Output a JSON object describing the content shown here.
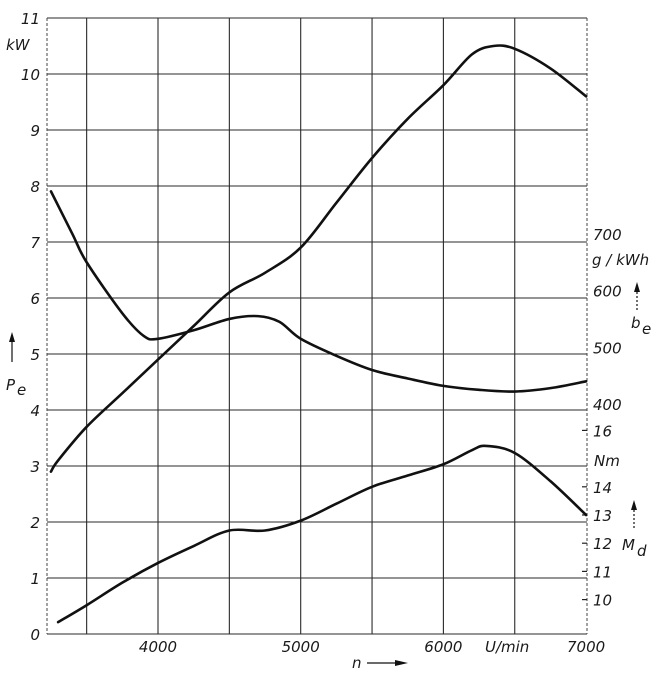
{
  "chart_data": {
    "type": "line",
    "title": "",
    "xlabel": "n",
    "xunit": "U/min",
    "xlim": [
      3200,
      7000
    ],
    "x_ticks": [
      4000,
      5000,
      6000,
      7000
    ],
    "x_gridlines": [
      3500,
      4000,
      4500,
      5000,
      5500,
      6000,
      6500
    ],
    "axes": {
      "left": {
        "label": "P_e",
        "unit": "kW",
        "range": [
          0,
          11
        ],
        "ticks": [
          0,
          1,
          2,
          3,
          4,
          5,
          6,
          7,
          8,
          9,
          10,
          11
        ]
      },
      "right_upper": {
        "label": "b_e",
        "unit": "g/kWh",
        "ticks": [
          400,
          500,
          600,
          700
        ]
      },
      "right_lower": {
        "label": "M_d",
        "unit": "Nm",
        "ticks": [
          10,
          11,
          12,
          13,
          14,
          16
        ]
      }
    },
    "grid": true,
    "series": [
      {
        "name": "P_e (kW)",
        "axis": "left",
        "x": [
          3250,
          3300,
          3500,
          3750,
          4000,
          4250,
          4500,
          4750,
          5000,
          5250,
          5500,
          5750,
          6000,
          6200,
          6350,
          6500,
          6750,
          7000
        ],
        "values": [
          2.9,
          3.1,
          3.7,
          4.3,
          4.9,
          5.5,
          6.1,
          6.45,
          6.9,
          7.7,
          8.5,
          9.2,
          9.8,
          10.35,
          10.5,
          10.45,
          10.1,
          9.6
        ]
      },
      {
        "name": "b_e (g/kWh)",
        "axis": "right_upper",
        "x": [
          3250,
          3400,
          3500,
          3750,
          3900,
          4000,
          4250,
          4500,
          4700,
          4850,
          5000,
          5250,
          5500,
          5750,
          6000,
          6250,
          6500,
          6750,
          7000
        ],
        "values": [
          775,
          700,
          650,
          560,
          520,
          515,
          530,
          550,
          555,
          545,
          515,
          485,
          460,
          445,
          432,
          425,
          422,
          428,
          440
        ]
      },
      {
        "name": "M_d (Nm)",
        "axis": "right_lower",
        "x": [
          3300,
          3500,
          3750,
          4000,
          4250,
          4500,
          4750,
          5000,
          5250,
          5500,
          5750,
          6000,
          6200,
          6300,
          6500,
          6750,
          7000
        ],
        "values": [
          9.2,
          9.8,
          10.6,
          11.3,
          11.9,
          12.45,
          12.45,
          12.8,
          13.4,
          14.0,
          14.4,
          14.8,
          15.3,
          15.45,
          15.2,
          14.2,
          13.0
        ]
      }
    ]
  },
  "labels": {
    "left_unit": "kW",
    "left_axis": "P",
    "left_axis_sub": "e",
    "right_upper_unit": "g / kWh",
    "right_upper_axis": "b",
    "right_upper_axis_sub": "e",
    "right_lower_unit": "Nm",
    "right_lower_axis": "M",
    "right_lower_axis_sub": "d",
    "x_axis": "n",
    "x_unit": "U/min"
  }
}
